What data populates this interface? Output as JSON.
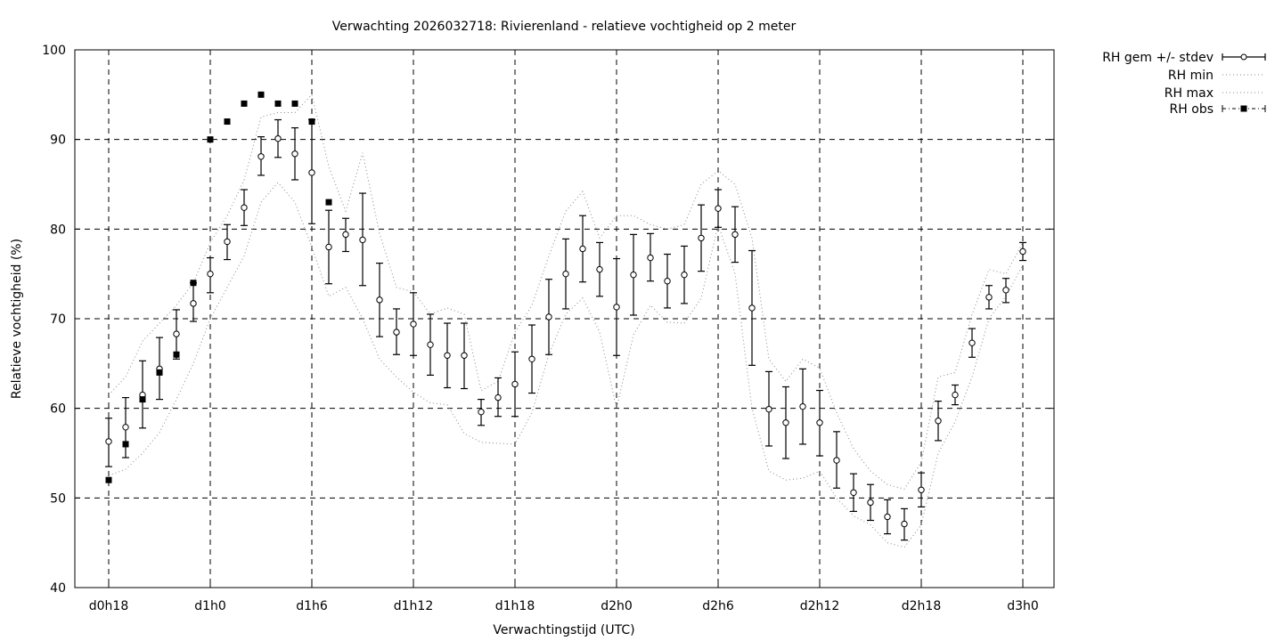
{
  "chart_data": {
    "type": "scatter",
    "title": "Verwachting 2026032718: Rivierenland - relatieve vochtigheid op 2 meter",
    "xlabel": "Verwachtingstijd (UTC)",
    "ylabel": "Relatieve vochtigheid (%)",
    "xlim": [
      -2,
      56
    ],
    "ylim": [
      40,
      100
    ],
    "yticks": [
      40,
      50,
      60,
      70,
      80,
      90,
      100
    ],
    "xticks": [
      {
        "x": 0,
        "label": "d0h18"
      },
      {
        "x": 6,
        "label": "d1h0"
      },
      {
        "x": 12,
        "label": "d1h6"
      },
      {
        "x": 18,
        "label": "d1h12"
      },
      {
        "x": 24,
        "label": "d1h18"
      },
      {
        "x": 30,
        "label": "d2h0"
      },
      {
        "x": 36,
        "label": "d2h6"
      },
      {
        "x": 42,
        "label": "d2h12"
      },
      {
        "x": 48,
        "label": "d2h18"
      },
      {
        "x": 54,
        "label": "d3h0"
      }
    ],
    "grid": true,
    "legend_position": "outside-top-right",
    "series": [
      {
        "name": "RH gem +/- stdev",
        "style": "errorbars-open-circle",
        "x": [
          0,
          1,
          2,
          3,
          4,
          5,
          6,
          7,
          8,
          9,
          10,
          11,
          12,
          13,
          14,
          15,
          16,
          17,
          18,
          19,
          20,
          21,
          22,
          23,
          24,
          25,
          26,
          27,
          28,
          29,
          30,
          31,
          32,
          33,
          34,
          35,
          36,
          37,
          38,
          39,
          40,
          41,
          42,
          43,
          44,
          45,
          46,
          47,
          48,
          49,
          50,
          51,
          52,
          53,
          54
        ],
        "y": [
          56.3,
          57.9,
          61.5,
          64.4,
          68.3,
          71.7,
          75.0,
          78.6,
          82.4,
          88.1,
          90.1,
          88.4,
          86.3,
          78.0,
          79.4,
          78.8,
          72.1,
          68.5,
          69.4,
          67.1,
          65.9,
          65.9,
          59.6,
          61.2,
          62.7,
          65.5,
          70.2,
          75.0,
          77.8,
          75.5,
          71.3,
          74.9,
          76.8,
          74.2,
          74.9,
          79.0,
          82.3,
          79.4,
          71.2,
          59.9,
          58.4,
          60.2,
          58.4,
          54.2,
          50.6,
          49.5,
          47.9,
          47.1,
          50.9,
          58.6,
          61.5,
          67.3,
          72.4,
          73.2,
          77.5
        ],
        "err_low": [
          53.5,
          54.5,
          57.8,
          61.0,
          65.5,
          69.7,
          72.9,
          76.6,
          80.4,
          86.0,
          88.0,
          85.5,
          80.6,
          73.9,
          77.5,
          73.7,
          68.0,
          66.0,
          65.9,
          63.7,
          62.3,
          62.2,
          58.1,
          59.1,
          59.1,
          61.7,
          66.0,
          71.1,
          74.1,
          72.5,
          65.9,
          70.4,
          74.2,
          71.2,
          71.7,
          75.3,
          80.2,
          76.3,
          64.8,
          55.8,
          54.4,
          56.0,
          54.7,
          51.1,
          48.5,
          47.5,
          46.0,
          45.3,
          49.0,
          56.4,
          60.4,
          65.7,
          71.1,
          71.8,
          76.5
        ],
        "err_high": [
          58.9,
          61.2,
          65.3,
          67.9,
          71.0,
          74.0,
          76.8,
          80.5,
          84.4,
          90.3,
          92.2,
          91.3,
          92.2,
          82.1,
          81.2,
          84.0,
          76.2,
          71.1,
          72.9,
          70.5,
          69.5,
          69.5,
          61.0,
          63.4,
          66.3,
          69.3,
          74.4,
          78.9,
          81.5,
          78.5,
          76.7,
          79.4,
          79.5,
          77.2,
          78.1,
          82.7,
          84.4,
          82.5,
          77.6,
          64.1,
          62.4,
          64.4,
          62.0,
          57.4,
          52.7,
          51.5,
          49.8,
          48.8,
          52.8,
          60.8,
          62.6,
          68.9,
          73.7,
          74.5,
          78.5
        ]
      },
      {
        "name": "RH min",
        "style": "dotted-line",
        "x": [
          0,
          1,
          2,
          3,
          4,
          5,
          6,
          7,
          8,
          9,
          10,
          11,
          12,
          13,
          14,
          15,
          16,
          17,
          18,
          19,
          20,
          21,
          22,
          23,
          24,
          25,
          26,
          27,
          28,
          29,
          30,
          31,
          32,
          33,
          34,
          35,
          36,
          37,
          38,
          39,
          40,
          41,
          42,
          43,
          44,
          45,
          46,
          47,
          48,
          49,
          50,
          51,
          52,
          53,
          54
        ],
        "y": [
          52.5,
          53.2,
          55.0,
          57.3,
          61.0,
          65.0,
          70.0,
          73.5,
          77.0,
          83.0,
          85.2,
          83.0,
          78.0,
          72.5,
          73.5,
          70.0,
          65.5,
          63.5,
          61.8,
          60.6,
          60.4,
          57.2,
          56.2,
          56.1,
          56.0,
          59.5,
          66.0,
          70.5,
          72.3,
          68.5,
          60.0,
          68.2,
          71.5,
          69.6,
          69.5,
          72.3,
          80.5,
          75.0,
          60.0,
          53.0,
          52.0,
          52.2,
          53.0,
          50.0,
          48.0,
          47.0,
          45.0,
          44.5,
          47.0,
          55.0,
          58.5,
          63.5,
          70.0,
          72.5,
          76.0
        ]
      },
      {
        "name": "RH max",
        "style": "dotted-line",
        "x": [
          0,
          1,
          2,
          3,
          4,
          5,
          6,
          7,
          8,
          9,
          10,
          11,
          12,
          13,
          14,
          15,
          16,
          17,
          18,
          19,
          20,
          21,
          22,
          23,
          24,
          25,
          26,
          27,
          28,
          29,
          30,
          31,
          32,
          33,
          34,
          35,
          36,
          37,
          38,
          39,
          40,
          41,
          42,
          43,
          44,
          45,
          46,
          47,
          48,
          49,
          50,
          51,
          52,
          53,
          54
        ],
        "y": [
          61.5,
          63.5,
          67.5,
          69.5,
          71.5,
          74.0,
          78.5,
          81.5,
          85.5,
          92.5,
          93.0,
          93.0,
          95.0,
          87.0,
          82.0,
          88.5,
          79.5,
          73.5,
          73.0,
          70.5,
          71.2,
          70.5,
          62.0,
          63.0,
          68.5,
          71.5,
          77.0,
          82.0,
          84.2,
          79.0,
          81.5,
          81.5,
          80.5,
          80.0,
          80.5,
          85.0,
          86.5,
          85.0,
          79.0,
          65.5,
          63.0,
          65.5,
          64.5,
          59.5,
          55.5,
          53.0,
          51.5,
          51.0,
          54.0,
          63.5,
          64.0,
          70.5,
          75.5,
          75.0,
          78.5
        ]
      },
      {
        "name": "RH obs",
        "style": "filled-square",
        "x": [
          0,
          1,
          2,
          3,
          4,
          5,
          6,
          7,
          8,
          9,
          10,
          11,
          12,
          13
        ],
        "y": [
          52,
          56,
          61,
          64,
          66,
          74,
          90,
          92,
          94,
          95,
          94,
          94,
          92,
          83
        ]
      }
    ]
  }
}
